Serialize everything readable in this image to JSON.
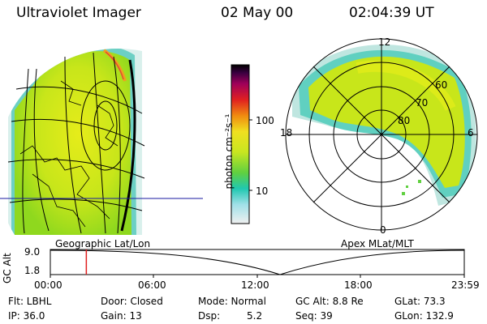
{
  "header": {
    "instrument": "Ultraviolet Imager",
    "date": "02 May 00",
    "time": "02:04:39 UT"
  },
  "colorbar": {
    "unit_label": "photon cm⁻²s⁻¹",
    "ticks": [
      "100",
      "10"
    ]
  },
  "polar_plot": {
    "mlt_labels": [
      "12",
      "18",
      "6",
      "0"
    ],
    "lat_labels": [
      "60",
      "70",
      "80"
    ]
  },
  "projection_labels": {
    "left": "Geographic Lat/Lon",
    "right": "Apex MLat/MLT"
  },
  "altitude_plot": {
    "ylabel": "GC Alt",
    "y_ticks": [
      "9.0",
      "1.8"
    ],
    "x_ticks": [
      "00:00",
      "06:00",
      "12:00",
      "18:00",
      "23:59"
    ],
    "current_time_fraction": 0.087
  },
  "status": {
    "flt": "Flt: LBHL",
    "ip": "IP: 36.0",
    "door": "Door: Closed",
    "gain": "Gain: 13",
    "mode": "Mode: Normal",
    "dsp_label": "Dsp:",
    "dsp_value": "5.2",
    "gc_alt": "GC Alt: 8.8 Re",
    "seq": "Seq: 39",
    "glat": "GLat: 73.3",
    "glon": "GLon: 132.9"
  }
}
